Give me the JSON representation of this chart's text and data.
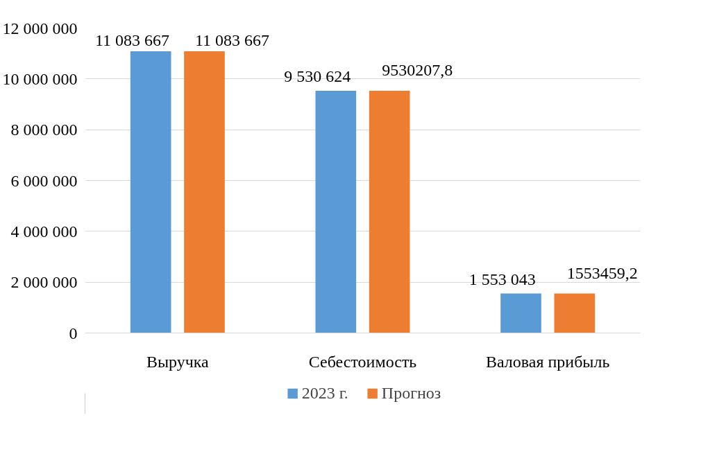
{
  "chart_data": {
    "type": "bar",
    "categories": [
      "Выручка",
      "Себестоимость",
      "Валовая прибыль"
    ],
    "series": [
      {
        "name": "2023 г.",
        "color": "#5b9bd5",
        "values": [
          11083667,
          9530624,
          1553043
        ],
        "value_labels": [
          "11 083 667",
          "9 530 624",
          "1 553 043"
        ]
      },
      {
        "name": "Прогноз",
        "color": "#ed7d31",
        "values": [
          11083667,
          9530207.8,
          1553459.2
        ],
        "value_labels": [
          "11 083 667",
          "9530207,8",
          "1553459,2"
        ]
      }
    ],
    "ylim": [
      0,
      12000000
    ],
    "yticks": [
      {
        "value": 0,
        "label": "0"
      },
      {
        "value": 2000000,
        "label": "2 000 000"
      },
      {
        "value": 4000000,
        "label": "4 000 000"
      },
      {
        "value": 6000000,
        "label": "6 000 000"
      },
      {
        "value": 8000000,
        "label": "8 000 000"
      },
      {
        "value": 10000000,
        "label": "10 000 000"
      },
      {
        "value": 12000000,
        "label": "12 000 000"
      }
    ],
    "grid": "y",
    "legend": "bottom"
  }
}
